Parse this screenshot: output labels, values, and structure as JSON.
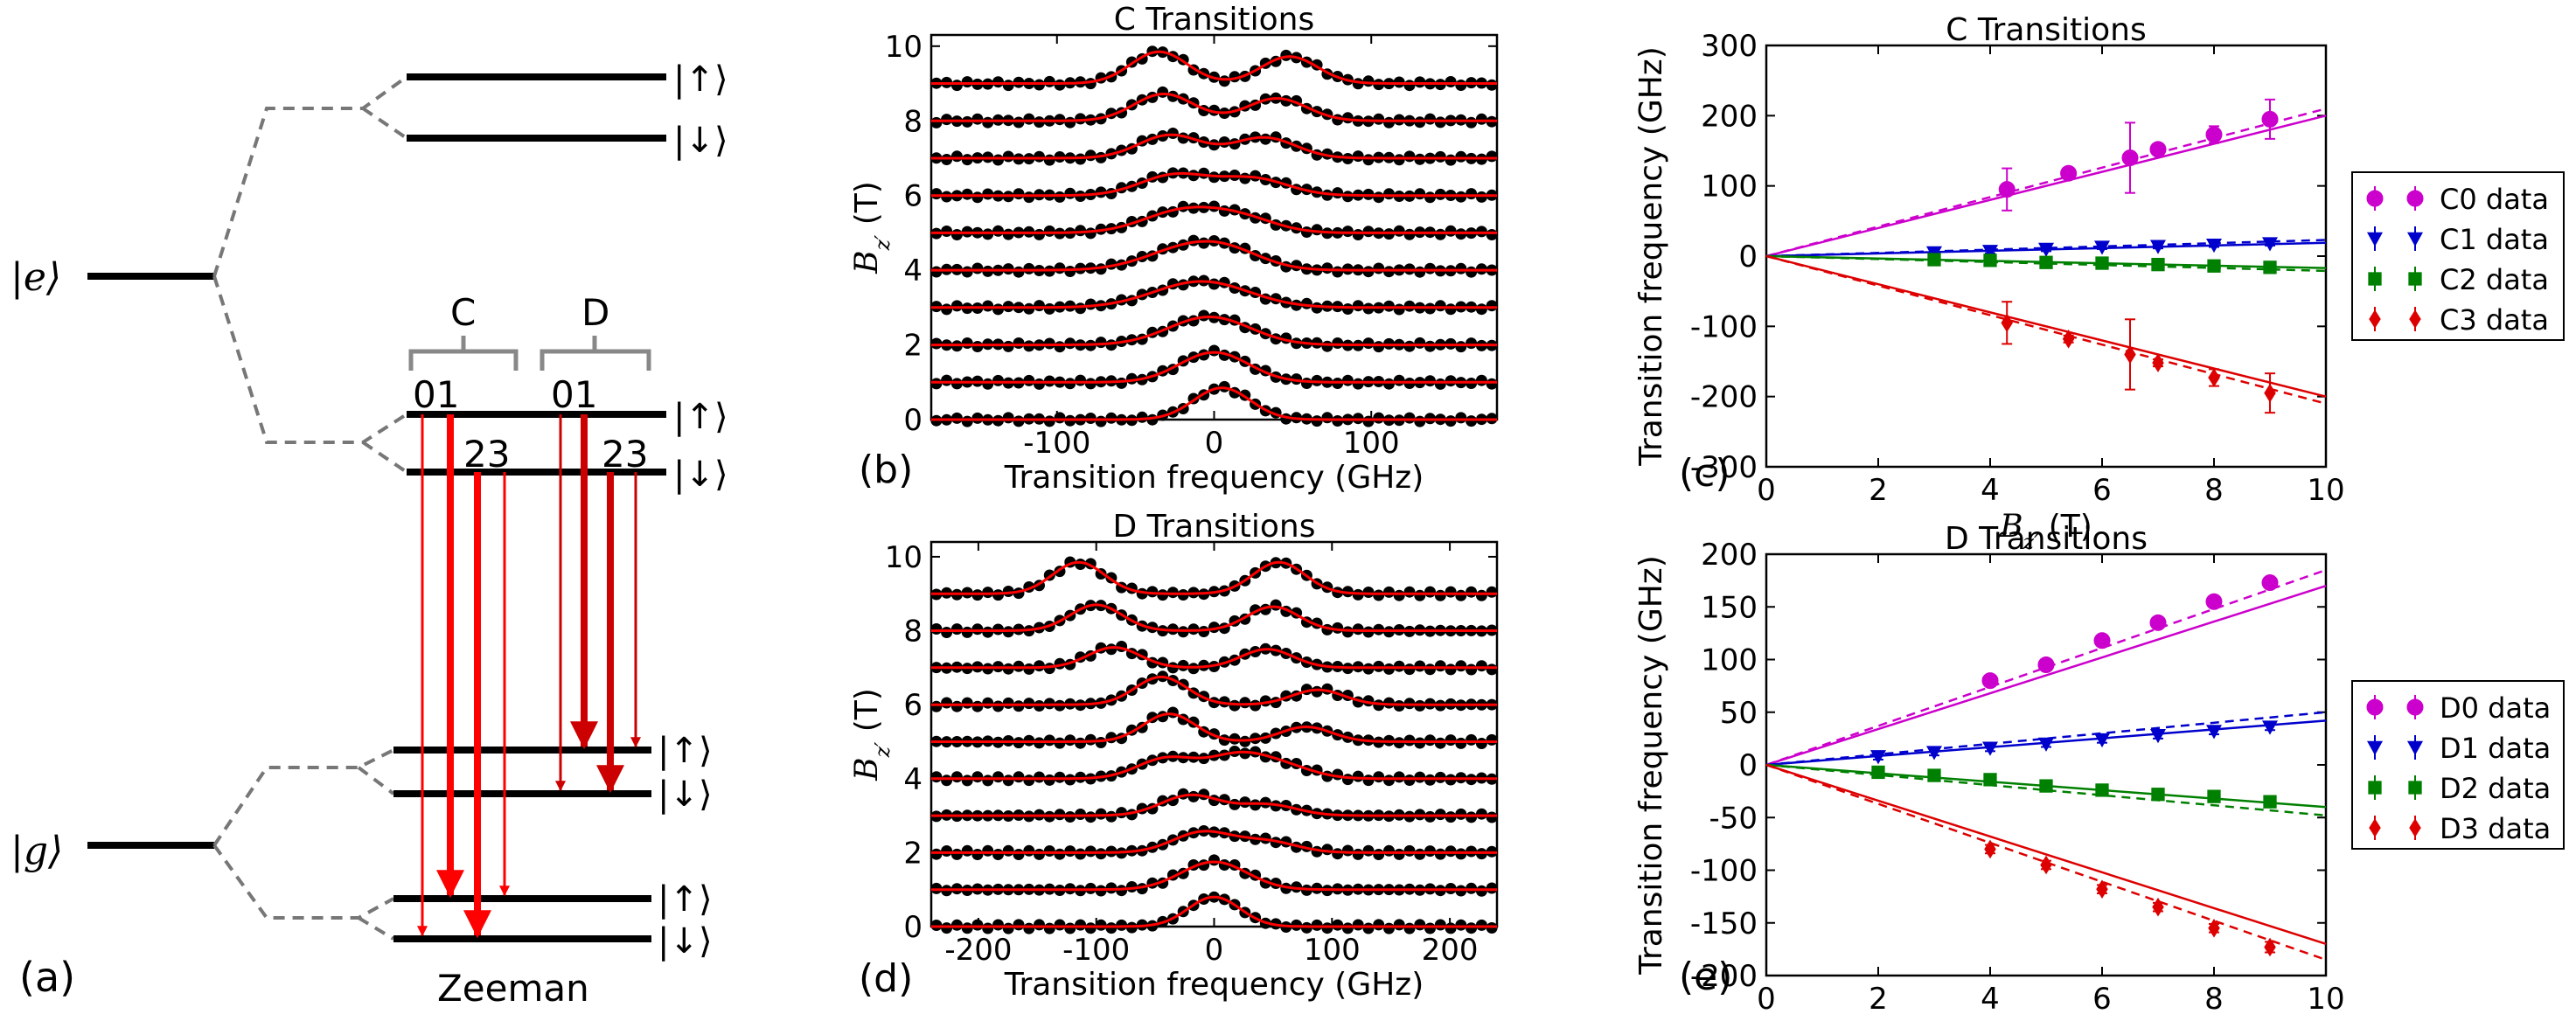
{
  "energy_diagram": {
    "panel_label": "(a)",
    "excited_state_label": "|e⟩",
    "ground_state_label": "|g⟩",
    "spin_up": "|↑⟩",
    "spin_down": "|↓⟩",
    "group_c_label": "C",
    "group_d_label": "D",
    "c_top_numbers": "01",
    "c_bottom_numbers": "23",
    "d_top_numbers": "01",
    "d_bottom_numbers": "23",
    "zeeman_label": "Zeeman",
    "arrow_color": "#ff0000",
    "arrow_color_d": "#cc0000"
  },
  "chart_data": [
    {
      "id": "b",
      "panel_label": "(b)",
      "type": "line",
      "title": "C Transitions",
      "xlabel": "Transition frequency (GHz)",
      "ylabel": "B_z′ (T)",
      "xlim": [
        -180,
        180
      ],
      "ylim": [
        0,
        10.3
      ],
      "xticks": [
        -100,
        0,
        100
      ],
      "yticks": [
        0,
        2,
        4,
        6,
        8,
        10
      ],
      "field_offsets_T": [
        0,
        1,
        2,
        3,
        4,
        5,
        6,
        7,
        8,
        9
      ],
      "peaks": [
        {
          "offset": 0,
          "components": [
            {
              "center": 5,
              "amp": 0.85,
              "width": 18
            }
          ]
        },
        {
          "offset": 1,
          "components": [
            {
              "center": 0,
              "amp": 0.8,
              "width": 22
            }
          ]
        },
        {
          "offset": 2,
          "components": [
            {
              "center": -3,
              "amp": 0.75,
              "width": 26
            }
          ]
        },
        {
          "offset": 3,
          "components": [
            {
              "center": -8,
              "amp": 0.7,
              "width": 30
            }
          ]
        },
        {
          "offset": 4,
          "components": [
            {
              "center": -14,
              "amp": 0.62,
              "width": 28
            },
            {
              "center": 12,
              "amp": 0.25,
              "width": 22
            }
          ]
        },
        {
          "offset": 5,
          "components": [
            {
              "center": -20,
              "amp": 0.58,
              "width": 25
            },
            {
              "center": 18,
              "amp": 0.35,
              "width": 22
            }
          ]
        },
        {
          "offset": 6,
          "components": [
            {
              "center": -25,
              "amp": 0.55,
              "width": 22
            },
            {
              "center": 25,
              "amp": 0.45,
              "width": 22
            }
          ]
        },
        {
          "offset": 7,
          "components": [
            {
              "center": -28,
              "amp": 0.62,
              "width": 20
            },
            {
              "center": 32,
              "amp": 0.55,
              "width": 20
            }
          ]
        },
        {
          "offset": 8,
          "components": [
            {
              "center": -32,
              "amp": 0.72,
              "width": 19
            },
            {
              "center": 40,
              "amp": 0.6,
              "width": 19
            }
          ]
        },
        {
          "offset": 9,
          "components": [
            {
              "center": -35,
              "amp": 0.85,
              "width": 18
            },
            {
              "center": 48,
              "amp": 0.72,
              "width": 18
            }
          ]
        }
      ],
      "marker_color": "#000000",
      "fit_color": "#ff0000"
    },
    {
      "id": "d",
      "panel_label": "(d)",
      "type": "line",
      "title": "D Transitions",
      "xlabel": "Transition frequency (GHz)",
      "ylabel": "B_z′ (T)",
      "xlim": [
        -240,
        240
      ],
      "ylim": [
        0,
        10.4
      ],
      "xticks": [
        -200,
        -100,
        0,
        100,
        200
      ],
      "yticks": [
        0,
        2,
        4,
        6,
        8,
        10
      ],
      "field_offsets_T": [
        0,
        1,
        2,
        3,
        4,
        5,
        6,
        7,
        8,
        9
      ],
      "peaks": [
        {
          "offset": 0,
          "components": [
            {
              "center": 0,
              "amp": 0.8,
              "width": 22
            }
          ]
        },
        {
          "offset": 1,
          "components": [
            {
              "center": 0,
              "amp": 0.75,
              "width": 28
            }
          ]
        },
        {
          "offset": 2,
          "components": [
            {
              "center": -10,
              "amp": 0.55,
              "width": 25
            },
            {
              "center": 45,
              "amp": 0.3,
              "width": 25
            }
          ]
        },
        {
          "offset": 3,
          "components": [
            {
              "center": -20,
              "amp": 0.55,
              "width": 25
            },
            {
              "center": 45,
              "amp": 0.3,
              "width": 25
            }
          ]
        },
        {
          "offset": 4,
          "components": [
            {
              "center": -40,
              "amp": 0.55,
              "width": 25
            },
            {
              "center": 20,
              "amp": 0.6,
              "width": 25
            },
            {
              "center": 60,
              "amp": 0.3,
              "width": 25
            }
          ]
        },
        {
          "offset": 5,
          "components": [
            {
              "center": -38,
              "amp": 0.75,
              "width": 22
            },
            {
              "center": 78,
              "amp": 0.4,
              "width": 22
            }
          ]
        },
        {
          "offset": 6,
          "components": [
            {
              "center": -45,
              "amp": 0.75,
              "width": 22
            },
            {
              "center": 88,
              "amp": 0.4,
              "width": 22
            }
          ]
        },
        {
          "offset": 7,
          "components": [
            {
              "center": -85,
              "amp": 0.55,
              "width": 22
            },
            {
              "center": 45,
              "amp": 0.5,
              "width": 22
            }
          ]
        },
        {
          "offset": 8,
          "components": [
            {
              "center": -100,
              "amp": 0.7,
              "width": 22
            },
            {
              "center": 50,
              "amp": 0.65,
              "width": 22
            }
          ]
        },
        {
          "offset": 9,
          "components": [
            {
              "center": -115,
              "amp": 0.85,
              "width": 22
            },
            {
              "center": 55,
              "amp": 0.85,
              "width": 22
            }
          ]
        }
      ],
      "marker_color": "#000000",
      "fit_color": "#ff0000"
    },
    {
      "id": "c",
      "panel_label": "(c)",
      "type": "scatter",
      "title": "C Transitions",
      "xlabel": "B_z′ (T)",
      "ylabel": "Transition frequency (GHz)",
      "xlim": [
        0,
        10
      ],
      "ylim": [
        -300,
        300
      ],
      "xticks": [
        0,
        2,
        4,
        6,
        8,
        10
      ],
      "yticks": [
        -300,
        -200,
        -100,
        0,
        100,
        200,
        300
      ],
      "series": [
        {
          "name": "C0 data",
          "color": "#cc00cc",
          "marker": "circle",
          "x": [
            4.3,
            5.4,
            6.5,
            7,
            8,
            9
          ],
          "y": [
            95,
            118,
            140,
            152,
            173,
            195
          ],
          "err": [
            30,
            5,
            50,
            5,
            12,
            28
          ],
          "slope_solid": 20,
          "slope_dashed": 21
        },
        {
          "name": "C1 data",
          "color": "#0000cc",
          "marker": "tri_down",
          "x": [
            3,
            4,
            5,
            6,
            7,
            8,
            9
          ],
          "y": [
            5,
            7,
            10,
            13,
            14,
            16,
            18
          ],
          "err": [
            3,
            3,
            3,
            3,
            3,
            3,
            3
          ],
          "slope_solid": 1.9,
          "slope_dashed": 2.3
        },
        {
          "name": "C2 data",
          "color": "#008000",
          "marker": "square",
          "x": [
            3,
            4,
            5,
            6,
            7,
            8,
            9
          ],
          "y": [
            -5,
            -6,
            -9,
            -10,
            -12,
            -14,
            -16
          ],
          "err": [
            3,
            3,
            3,
            3,
            3,
            3,
            3
          ],
          "slope_solid": -1.7,
          "slope_dashed": -2.1
        },
        {
          "name": "C3 data",
          "color": "#dd0000",
          "marker": "diamond",
          "x": [
            4.3,
            5.4,
            6.5,
            7,
            8,
            9
          ],
          "y": [
            -95,
            -118,
            -140,
            -152,
            -173,
            -195
          ],
          "err": [
            30,
            5,
            50,
            5,
            12,
            28
          ],
          "slope_solid": -20,
          "slope_dashed": -21
        }
      ],
      "legend": "right"
    },
    {
      "id": "e",
      "panel_label": "(e)",
      "type": "scatter",
      "title": "D Transitions",
      "xlabel": "B_z′ (T)",
      "ylabel": "Transition frequency (GHz)",
      "xlim": [
        0,
        10
      ],
      "ylim": [
        -200,
        200
      ],
      "xticks": [
        0,
        2,
        4,
        6,
        8,
        10
      ],
      "yticks": [
        -200,
        -150,
        -100,
        -50,
        0,
        50,
        100,
        150,
        200
      ],
      "series": [
        {
          "name": "D0 data",
          "color": "#cc00cc",
          "marker": "circle",
          "x": [
            4,
            5,
            6,
            7,
            8,
            9
          ],
          "y": [
            80,
            95,
            118,
            135,
            155,
            173
          ],
          "err": [
            4,
            4,
            4,
            4,
            4,
            5
          ],
          "slope_solid": 17,
          "slope_dashed": 18.5
        },
        {
          "name": "D1 data",
          "color": "#0000cc",
          "marker": "tri_down",
          "x": [
            2,
            3,
            4,
            5,
            6,
            7,
            8,
            9
          ],
          "y": [
            8,
            12,
            16,
            20,
            24,
            28,
            32,
            36
          ],
          "err": [
            3,
            3,
            3,
            3,
            3,
            3,
            3,
            3
          ],
          "slope_solid": 4.2,
          "slope_dashed": 5
        },
        {
          "name": "D2 data",
          "color": "#008000",
          "marker": "square",
          "x": [
            2,
            3,
            4,
            5,
            6,
            7,
            8,
            9
          ],
          "y": [
            -7,
            -10,
            -14,
            -20,
            -24,
            -28,
            -30,
            -35
          ],
          "err": [
            3,
            3,
            3,
            3,
            3,
            3,
            3,
            3
          ],
          "slope_solid": -4,
          "slope_dashed": -4.8
        },
        {
          "name": "D3 data",
          "color": "#dd0000",
          "marker": "diamond",
          "x": [
            4,
            5,
            6,
            7,
            8,
            9
          ],
          "y": [
            -80,
            -95,
            -118,
            -135,
            -155,
            -173
          ],
          "err": [
            4,
            4,
            4,
            4,
            4,
            5
          ],
          "slope_solid": -17,
          "slope_dashed": -18.5
        }
      ],
      "legend": "right"
    }
  ]
}
